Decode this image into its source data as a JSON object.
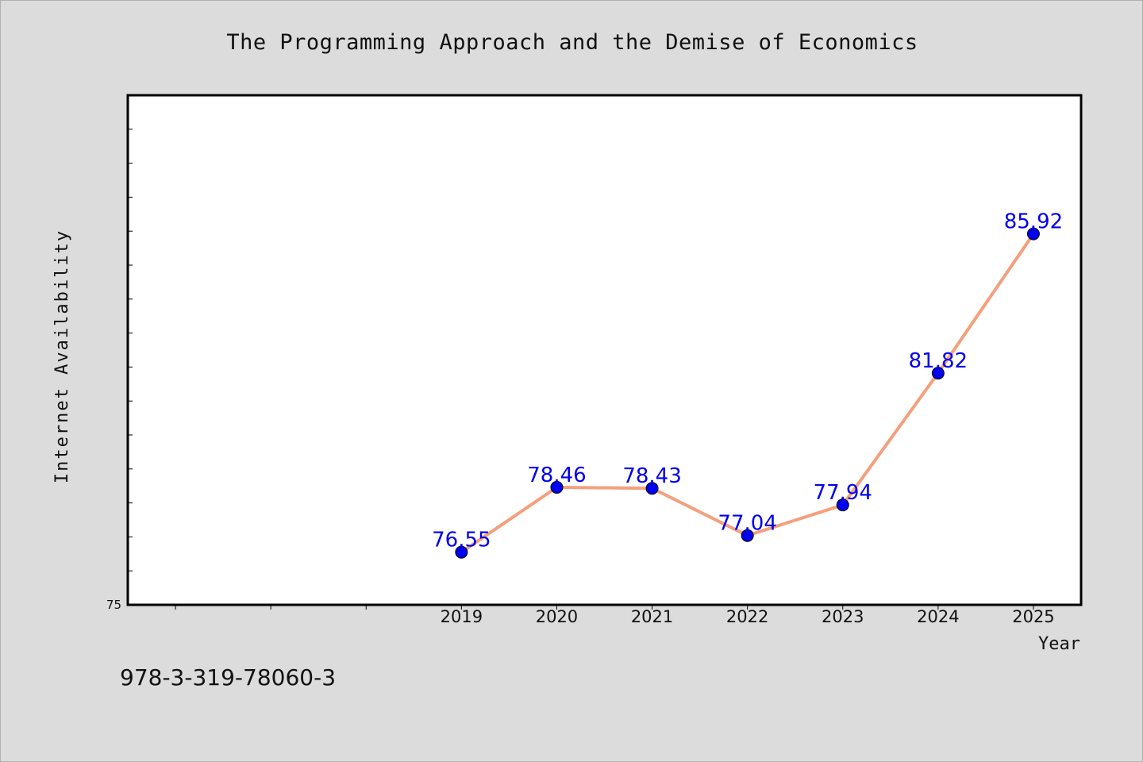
{
  "chart_data": {
    "type": "line",
    "title": "The Programming Approach and the Demise of Economics",
    "xlabel": "Year",
    "ylabel": "Internet Availability",
    "x": [
      "2019",
      "2020",
      "2021",
      "2022",
      "2023",
      "2024",
      "2025"
    ],
    "values": [
      76.55,
      78.46,
      78.43,
      77.04,
      77.94,
      81.82,
      85.92
    ],
    "y_tick_labels": [
      "75"
    ],
    "xlim": [
      2015.5,
      2025.5
    ],
    "ylim": [
      75,
      90
    ],
    "grid": false,
    "line_color": "#f4a07c",
    "marker_color": "#0000ee",
    "label_color": "#0000ee",
    "footnote": "978-3-319-78060-3"
  }
}
